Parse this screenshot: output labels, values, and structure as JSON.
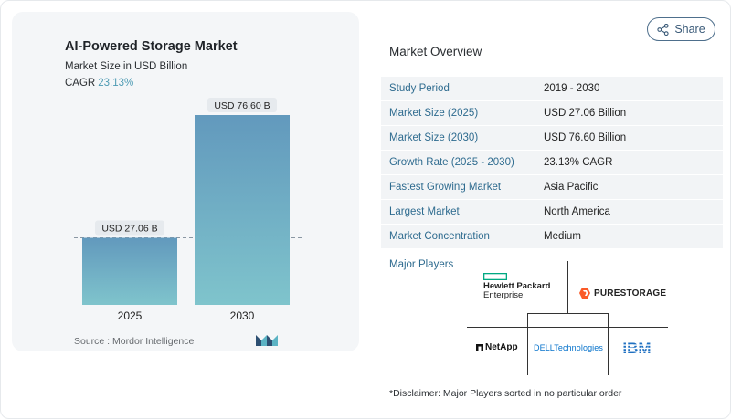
{
  "chart": {
    "title": "AI-Powered Storage Market",
    "subtitle": "Market Size in USD Billion",
    "cagr_label": "CAGR",
    "cagr_value": "23.13%",
    "source": "Source :  Mordor Intelligence"
  },
  "chart_data": {
    "type": "bar",
    "categories": [
      "2025",
      "2030"
    ],
    "values": [
      27.06,
      76.6
    ],
    "data_labels": [
      "USD 27.06 B",
      "USD 76.60 B"
    ],
    "title": "AI-Powered Storage Market",
    "subtitle": "Market Size in USD Billion",
    "ylim": [
      0,
      76.6
    ],
    "grid": false,
    "reference_line": "dashed at 2025 value",
    "colors": {
      "bar_top": "#6299bd",
      "bar_bottom": "#7fc4cc"
    }
  },
  "share": {
    "label": "Share"
  },
  "overview": {
    "title": "Market Overview",
    "rows": [
      {
        "label": "Study Period",
        "value": "2019 - 2030"
      },
      {
        "label": "Market Size (2025)",
        "value": "USD 27.06 Billion"
      },
      {
        "label": "Market Size (2030)",
        "value": "USD 76.60 Billion"
      },
      {
        "label": "Growth Rate (2025 - 2030)",
        "value": "23.13% CAGR"
      },
      {
        "label": "Fastest Growing Market",
        "value": "Asia Pacific"
      },
      {
        "label": "Largest Market",
        "value": "North America"
      },
      {
        "label": "Market Concentration",
        "value": "Medium"
      }
    ]
  },
  "players": {
    "title": "Major Players",
    "hpe": {
      "line1": "Hewlett Packard",
      "line2": "Enterprise"
    },
    "pure": {
      "text": "PURESTORAGE"
    },
    "netapp": {
      "text": "NetApp"
    },
    "dell": {
      "text": "DELLTechnologies"
    },
    "ibm": {
      "text": "IBM"
    }
  },
  "disclaimer": "*Disclaimer: Major Players sorted in no particular order",
  "colors": {
    "accent": "#2e6b8f",
    "cagr": "#4e9bb4",
    "card_bg": "#f4f6f8"
  }
}
